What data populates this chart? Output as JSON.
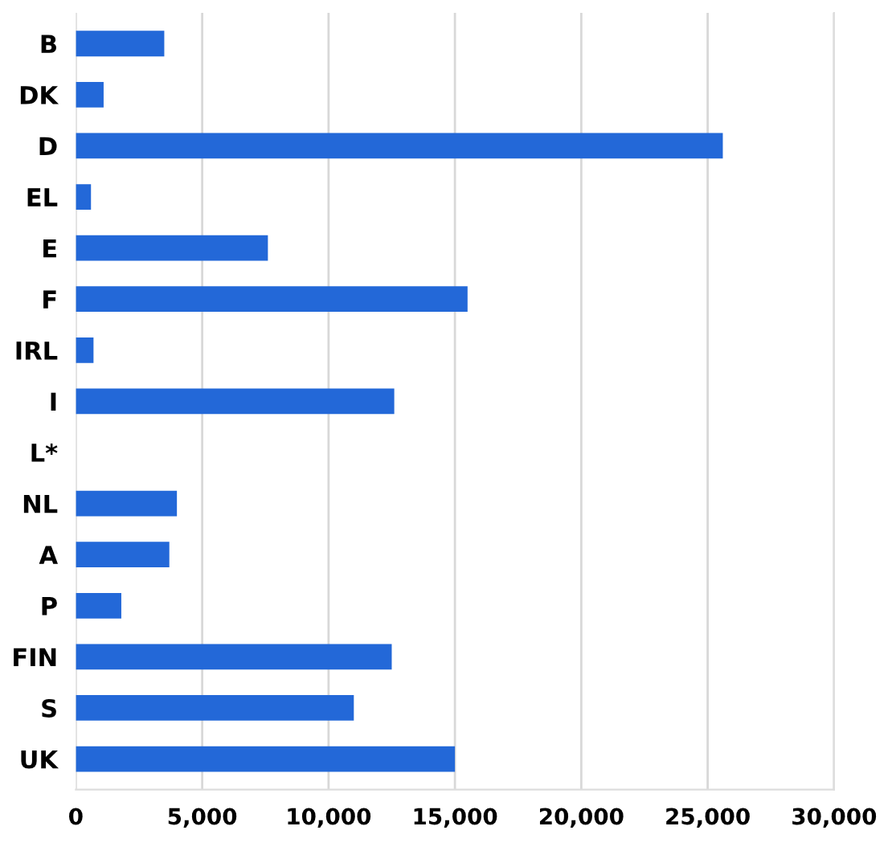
{
  "chart_data": {
    "type": "bar",
    "orientation": "horizontal",
    "categories": [
      "B",
      "DK",
      "D",
      "EL",
      "E",
      "F",
      "IRL",
      "I",
      "L*",
      "NL",
      "A",
      "P",
      "FIN",
      "S",
      "UK"
    ],
    "values": [
      3500,
      1100,
      25600,
      600,
      7600,
      15500,
      700,
      12600,
      null,
      4000,
      3700,
      1800,
      12500,
      11000,
      15000
    ],
    "color": "#2368d8",
    "xlim": [
      0,
      30000
    ],
    "xticks": [
      {
        "value": 0,
        "label": "0"
      },
      {
        "value": 5000,
        "label": "5,000"
      },
      {
        "value": 10000,
        "label": "10,000"
      },
      {
        "value": 15000,
        "label": "15,000"
      },
      {
        "value": 20000,
        "label": "20,000"
      },
      {
        "value": 25000,
        "label": "25,000"
      },
      {
        "value": 30000,
        "label": "30,000"
      }
    ],
    "grid": "x"
  }
}
